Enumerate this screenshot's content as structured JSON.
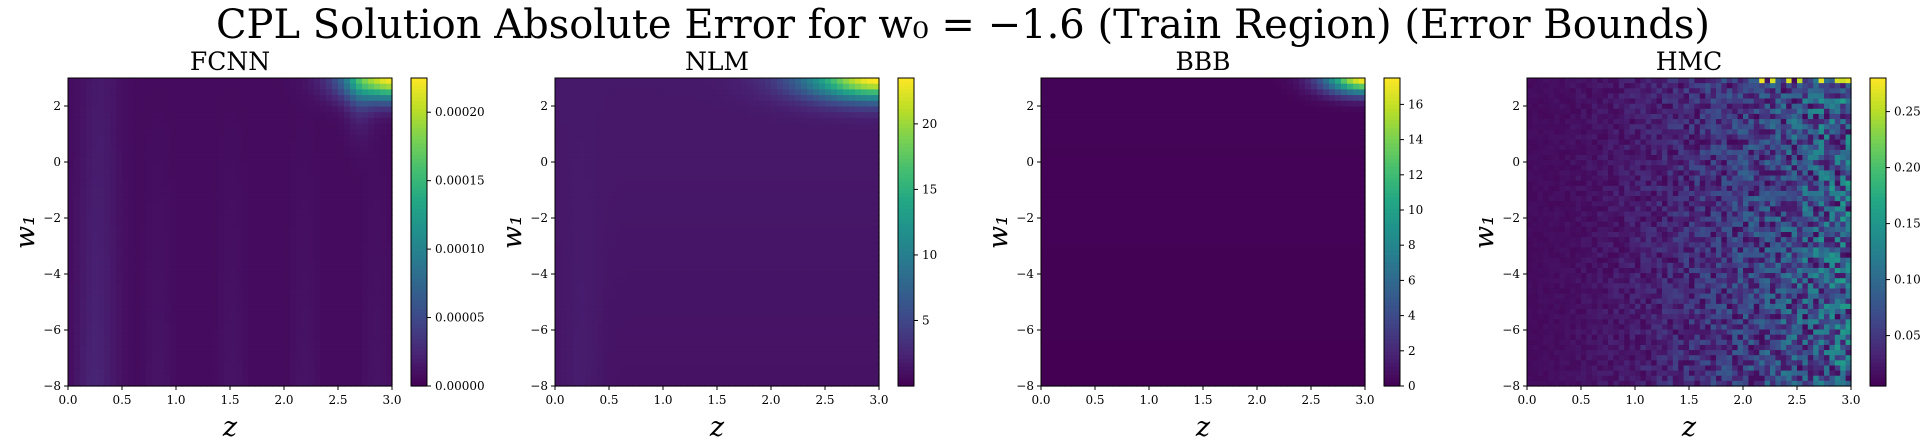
{
  "figure": {
    "title": "CPL Solution Absolute Error for w₀ = −1.6 (Train Region) (Error Bounds)"
  },
  "chart_data": [
    {
      "type": "heatmap",
      "title": "FCNN",
      "xlabel": "z",
      "ylabel": "w₁",
      "xlim": [
        0.0,
        3.0
      ],
      "ylim": [
        -8,
        3
      ],
      "xticks": [
        "0.0",
        "0.5",
        "1.0",
        "1.5",
        "2.0",
        "2.5",
        "3.0"
      ],
      "yticks": [
        "−8",
        "−6",
        "−4",
        "−2",
        "0",
        "2"
      ],
      "colorbar": {
        "min": 0.0,
        "max": 0.000225,
        "ticks": [
          "0.00000",
          "0.00005",
          "0.00010",
          "0.00015",
          "0.00020"
        ],
        "tick_values": [
          0,
          5e-05,
          0.0001,
          0.00015,
          0.0002
        ]
      },
      "colormap": "viridis",
      "pattern": "fcnn"
    },
    {
      "type": "heatmap",
      "title": "NLM",
      "xlabel": "z",
      "ylabel": "w₁",
      "xlim": [
        0.0,
        3.0
      ],
      "ylim": [
        -8,
        3
      ],
      "xticks": [
        "0.0",
        "0.5",
        "1.0",
        "1.5",
        "2.0",
        "2.5",
        "3.0"
      ],
      "yticks": [
        "−8",
        "−6",
        "−4",
        "−2",
        "0",
        "2"
      ],
      "colorbar": {
        "min": 0.0,
        "max": 23.5,
        "ticks": [
          "5",
          "10",
          "15",
          "20"
        ],
        "tick_values": [
          5,
          10,
          15,
          20
        ]
      },
      "colormap": "viridis",
      "pattern": "nlm"
    },
    {
      "type": "heatmap",
      "title": "BBB",
      "xlabel": "z",
      "ylabel": "w₁",
      "xlim": [
        0.0,
        3.0
      ],
      "ylim": [
        -8,
        3
      ],
      "xticks": [
        "0.0",
        "0.5",
        "1.0",
        "1.5",
        "2.0",
        "2.5",
        "3.0"
      ],
      "yticks": [
        "−8",
        "−6",
        "−4",
        "−2",
        "0",
        "2"
      ],
      "colorbar": {
        "min": 0.0,
        "max": 17.5,
        "ticks": [
          "0",
          "2",
          "4",
          "6",
          "8",
          "10",
          "12",
          "14",
          "16"
        ],
        "tick_values": [
          0,
          2,
          4,
          6,
          8,
          10,
          12,
          14,
          16
        ]
      },
      "colormap": "viridis",
      "pattern": "bbb"
    },
    {
      "type": "heatmap",
      "title": "HMC",
      "xlabel": "z",
      "ylabel": "w₁",
      "xlim": [
        0.0,
        3.0
      ],
      "ylim": [
        -8,
        3
      ],
      "xticks": [
        "0.0",
        "0.5",
        "1.0",
        "1.5",
        "2.0",
        "2.5",
        "3.0"
      ],
      "yticks": [
        "−8",
        "−6",
        "−4",
        "−2",
        "0",
        "2"
      ],
      "colorbar": {
        "min": 0.005,
        "max": 0.28,
        "ticks": [
          "0.05",
          "0.10",
          "0.15",
          "0.20",
          "0.25"
        ],
        "tick_values": [
          0.05,
          0.1,
          0.15,
          0.2,
          0.25
        ]
      },
      "colormap": "viridis",
      "pattern": "hmc"
    }
  ]
}
